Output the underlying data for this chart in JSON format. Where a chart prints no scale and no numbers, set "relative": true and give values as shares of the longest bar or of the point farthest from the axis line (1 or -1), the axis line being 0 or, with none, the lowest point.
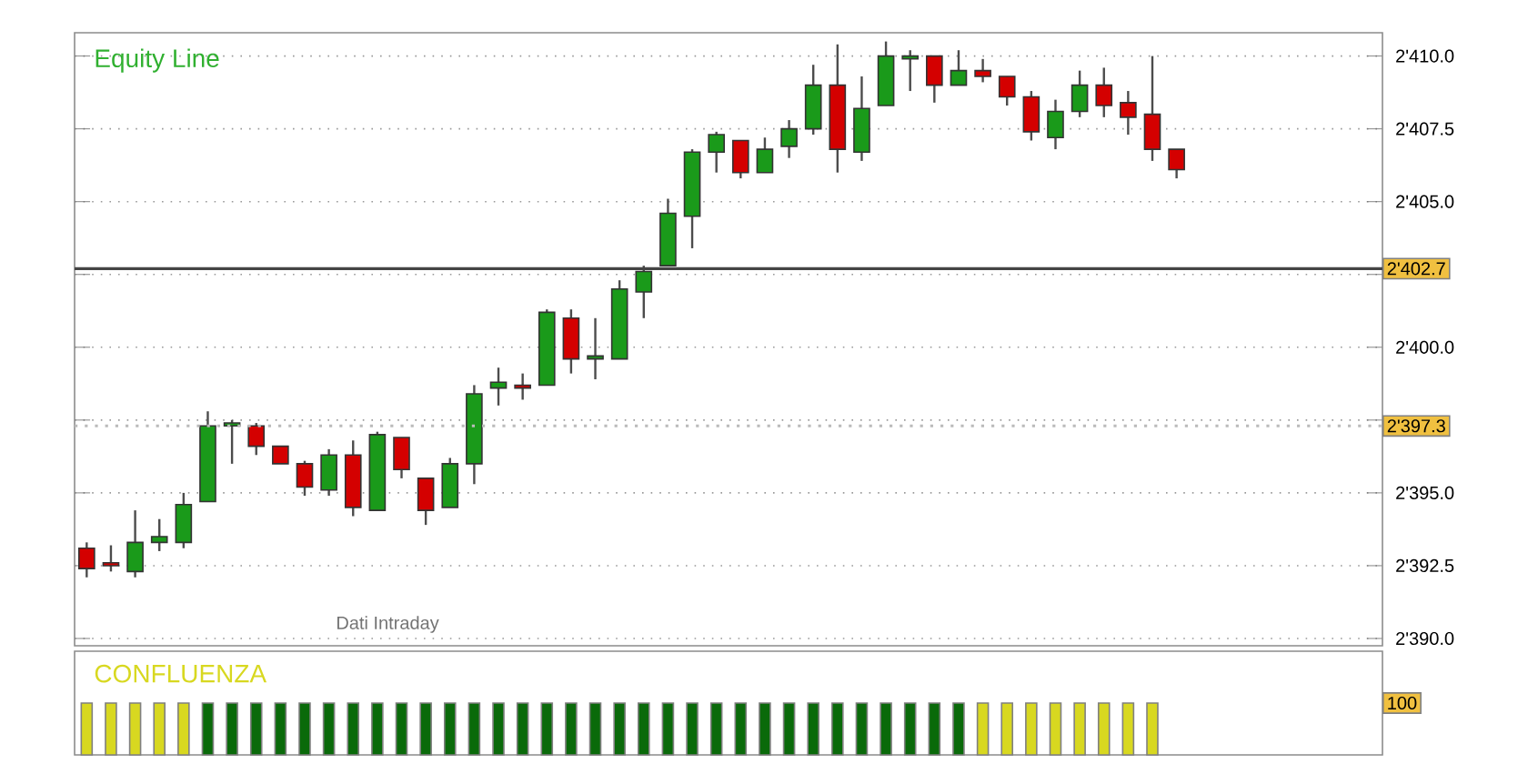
{
  "chart_data": [
    {
      "type": "candlestick",
      "title": "Equity Line",
      "categories": [
        null,
        null,
        null,
        null,
        null,
        null,
        null,
        null,
        null,
        null,
        null,
        null,
        null,
        null,
        null,
        null,
        null,
        null,
        null,
        null,
        null,
        null,
        null,
        null,
        null,
        null,
        null,
        null,
        null,
        null,
        null,
        null,
        null,
        null,
        null,
        null,
        null,
        null,
        null,
        null,
        null,
        null,
        null,
        null,
        null,
        null,
        null,
        null,
        null,
        null,
        null,
        null,
        null,
        null
      ],
      "ohlc": [
        [
          2393.1,
          2393.3,
          2392.1,
          2392.4
        ],
        [
          2392.6,
          2393.2,
          2392.3,
          2392.5
        ],
        [
          2392.3,
          2394.4,
          2392.1,
          2393.3
        ],
        [
          2393.3,
          2394.1,
          2393.0,
          2393.5
        ],
        [
          2393.3,
          2395.0,
          2393.1,
          2394.6
        ],
        [
          2394.7,
          2397.8,
          2394.7,
          2397.3
        ],
        [
          2397.3,
          2397.5,
          2396.0,
          2397.4
        ],
        [
          2397.3,
          2397.4,
          2396.3,
          2396.6
        ],
        [
          2396.6,
          2396.6,
          2396.0,
          2396.0
        ],
        [
          2396.0,
          2396.1,
          2394.9,
          2395.2
        ],
        [
          2395.1,
          2396.5,
          2394.9,
          2396.3
        ],
        [
          2396.3,
          2396.8,
          2394.2,
          2394.5
        ],
        [
          2394.4,
          2397.1,
          2394.4,
          2397.0
        ],
        [
          2396.9,
          2396.9,
          2395.5,
          2395.8
        ],
        [
          2395.5,
          2395.5,
          2393.9,
          2394.4
        ],
        [
          2394.5,
          2396.2,
          2394.5,
          2396.0
        ],
        [
          2396.0,
          2398.7,
          2395.3,
          2398.4
        ],
        [
          2398.6,
          2399.3,
          2398.0,
          2398.8
        ],
        [
          2398.7,
          2399.1,
          2398.2,
          2398.6
        ],
        [
          2398.7,
          2401.3,
          2398.7,
          2401.2
        ],
        [
          2401.0,
          2401.3,
          2399.1,
          2399.6
        ],
        [
          2399.6,
          2401.0,
          2398.9,
          2399.7
        ],
        [
          2399.6,
          2402.3,
          2399.6,
          2402.0
        ],
        [
          2401.9,
          2402.8,
          2401.0,
          2402.6
        ],
        [
          2402.8,
          2405.1,
          2402.8,
          2404.6
        ],
        [
          2404.5,
          2406.8,
          2403.4,
          2406.7
        ],
        [
          2406.7,
          2407.4,
          2406.0,
          2407.3
        ],
        [
          2407.1,
          2407.1,
          2405.8,
          2406.0
        ],
        [
          2406.0,
          2407.2,
          2406.0,
          2406.8
        ],
        [
          2406.9,
          2407.8,
          2406.5,
          2407.5
        ],
        [
          2407.5,
          2409.7,
          2407.3,
          2409.0
        ],
        [
          2409.0,
          2410.4,
          2406.0,
          2406.8
        ],
        [
          2406.7,
          2409.3,
          2406.4,
          2408.2
        ],
        [
          2408.3,
          2410.5,
          2408.3,
          2410.0
        ],
        [
          2409.9,
          2410.2,
          2408.8,
          2410.0
        ],
        [
          2410.0,
          2410.0,
          2408.4,
          2409.0
        ],
        [
          2409.0,
          2410.2,
          2409.0,
          2409.5
        ],
        [
          2409.5,
          2409.9,
          2409.1,
          2409.3
        ],
        [
          2409.3,
          2409.3,
          2408.3,
          2408.6
        ],
        [
          2408.6,
          2408.8,
          2407.1,
          2407.4
        ],
        [
          2407.2,
          2408.5,
          2406.8,
          2408.1
        ],
        [
          2408.1,
          2409.5,
          2407.9,
          2409.0
        ],
        [
          2409.0,
          2409.6,
          2407.9,
          2408.3
        ],
        [
          2408.4,
          2408.8,
          2407.3,
          2407.9
        ],
        [
          2408.0,
          2410.0,
          2406.4,
          2406.8
        ],
        [
          2406.8,
          2406.8,
          2405.8,
          2406.1
        ],
        null,
        null,
        null,
        null,
        null,
        null,
        null,
        null
      ],
      "colors": [
        "#d40000",
        "#d40000",
        "#1a9a1a",
        "#1a9a1a",
        "#1a9a1a",
        "#1a9a1a",
        "#1a9a1a",
        "#d40000",
        "#d40000",
        "#d40000",
        "#1a9a1a",
        "#d40000",
        "#1a9a1a",
        "#d40000",
        "#d40000",
        "#1a9a1a",
        "#1a9a1a",
        "#1a9a1a",
        "#d40000",
        "#1a9a1a",
        "#d40000",
        "#1a9a1a",
        "#1a9a1a",
        "#1a9a1a",
        "#1a9a1a",
        "#1a9a1a",
        "#1a9a1a",
        "#d40000",
        "#1a9a1a",
        "#1a9a1a",
        "#1a9a1a",
        "#d40000",
        "#1a9a1a",
        "#1a9a1a",
        "#1a9a1a",
        "#d40000",
        "#1a9a1a",
        "#d40000",
        "#d40000",
        "#d40000",
        "#1a9a1a",
        "#1a9a1a",
        "#d40000",
        "#d40000",
        "#d40000",
        "#d40000",
        null,
        null,
        null,
        null,
        null,
        null,
        null,
        null
      ],
      "ylim": [
        2389.75,
        2410.8
      ],
      "yticks": [
        {
          "value": 2390,
          "label": "2'390.0"
        },
        {
          "value": 2392.5,
          "label": "2'392.5"
        },
        {
          "value": 2395,
          "label": "2'395.0"
        },
        {
          "value": 2397.5,
          "label": null
        },
        {
          "value": 2400,
          "label": "2'400.0"
        },
        {
          "value": 2402.5,
          "label": null
        },
        {
          "value": 2405,
          "label": "2'405.0"
        },
        {
          "value": 2407.5,
          "label": "2'407.5"
        },
        {
          "value": 2410,
          "label": "2'410.0"
        }
      ],
      "grid": "y",
      "ref_lines": [
        {
          "axis": "y",
          "value": 2402.7,
          "label": "2'402.7",
          "color": "#444444",
          "line_style": "solid"
        },
        {
          "axis": "y",
          "value": 2397.3,
          "label": "2'397.3",
          "color": "#bbbbbb",
          "line_style": "dotted"
        }
      ],
      "annotations": [
        "Dati Intraday"
      ]
    },
    {
      "type": "bar",
      "title": "CONFLUENZA",
      "relative": true,
      "categories": [
        null,
        null,
        null,
        null,
        null,
        null,
        null,
        null,
        null,
        null,
        null,
        null,
        null,
        null,
        null,
        null,
        null,
        null,
        null,
        null,
        null,
        null,
        null,
        null,
        null,
        null,
        null,
        null,
        null,
        null,
        null,
        null,
        null,
        null,
        null,
        null,
        null,
        null,
        null,
        null,
        null,
        null,
        null,
        null,
        null,
        null,
        null,
        null,
        null,
        null,
        null,
        null,
        null,
        null
      ],
      "values": [
        1,
        1,
        1,
        1,
        1,
        1,
        1,
        1,
        1,
        1,
        1,
        1,
        1,
        1,
        1,
        1,
        1,
        1,
        1,
        1,
        1,
        1,
        1,
        1,
        1,
        1,
        1,
        1,
        1,
        1,
        1,
        1,
        1,
        1,
        1,
        1,
        1,
        1,
        1,
        1,
        1,
        1,
        1,
        1,
        1,
        null,
        null,
        null,
        null,
        null,
        null,
        null,
        null,
        null
      ],
      "colors": [
        "#d8d820",
        "#d8d820",
        "#d8d820",
        "#d8d820",
        "#d8d820",
        "#0a6a0a",
        "#0a6a0a",
        "#0a6a0a",
        "#0a6a0a",
        "#0a6a0a",
        "#0a6a0a",
        "#0a6a0a",
        "#0a6a0a",
        "#0a6a0a",
        "#0a6a0a",
        "#0a6a0a",
        "#0a6a0a",
        "#0a6a0a",
        "#0a6a0a",
        "#0a6a0a",
        "#0a6a0a",
        "#0a6a0a",
        "#0a6a0a",
        "#0a6a0a",
        "#0a6a0a",
        "#0a6a0a",
        "#0a6a0a",
        "#0a6a0a",
        "#0a6a0a",
        "#0a6a0a",
        "#0a6a0a",
        "#0a6a0a",
        "#0a6a0a",
        "#0a6a0a",
        "#0a6a0a",
        "#0a6a0a",
        "#0a6a0a",
        "#d8d820",
        "#d8d820",
        "#d8d820",
        "#d8d820",
        "#d8d820",
        "#d8d820",
        "#d8d820",
        "#d8d820",
        "#d8d820",
        null,
        null,
        null,
        null,
        null,
        null,
        null,
        null
      ],
      "annotations": [
        "100"
      ]
    }
  ]
}
